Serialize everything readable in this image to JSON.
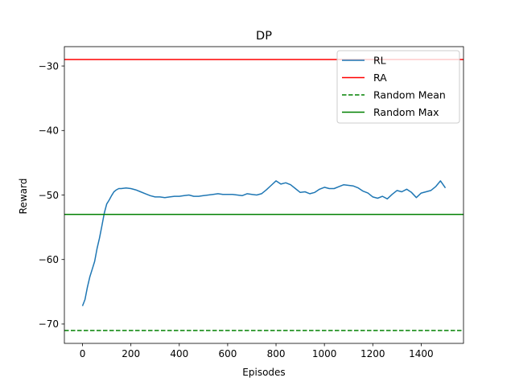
{
  "chart_data": {
    "type": "line",
    "title": "DP",
    "xlabel": "Episodes",
    "ylabel": "Reward",
    "xlim": [
      -75,
      1575
    ],
    "ylim": [
      -73,
      -27
    ],
    "xticks": [
      0,
      200,
      400,
      600,
      800,
      1000,
      1200,
      1400
    ],
    "xtick_labels": [
      "0",
      "200",
      "400",
      "600",
      "800",
      "1000",
      "1200",
      "1400"
    ],
    "yticks": [
      -70,
      -60,
      -50,
      -40,
      -30
    ],
    "ytick_labels": [
      "−70",
      "−60",
      "−50",
      "−40",
      "−30"
    ],
    "grid": false,
    "legend_position": "top-right",
    "series": [
      {
        "name": "RL",
        "color": "#1f77b4",
        "style": "solid",
        "x": [
          0,
          10,
          20,
          30,
          40,
          50,
          60,
          70,
          80,
          90,
          100,
          110,
          120,
          130,
          140,
          150,
          160,
          180,
          200,
          220,
          240,
          260,
          280,
          300,
          320,
          340,
          360,
          380,
          400,
          420,
          440,
          460,
          480,
          500,
          520,
          540,
          560,
          580,
          600,
          620,
          640,
          660,
          680,
          700,
          720,
          740,
          760,
          780,
          800,
          820,
          840,
          860,
          880,
          900,
          920,
          940,
          960,
          980,
          1000,
          1020,
          1040,
          1060,
          1080,
          1100,
          1120,
          1140,
          1160,
          1180,
          1200,
          1220,
          1240,
          1260,
          1280,
          1300,
          1320,
          1340,
          1360,
          1380,
          1400,
          1420,
          1440,
          1460,
          1480,
          1500
        ],
        "values": [
          -67.2,
          -66.2,
          -64.3,
          -62.7,
          -61.5,
          -60.3,
          -58.3,
          -56.7,
          -54.8,
          -52.8,
          -51.4,
          -50.8,
          -50.1,
          -49.5,
          -49.2,
          -49.0,
          -49.0,
          -48.9,
          -49.0,
          -49.2,
          -49.5,
          -49.8,
          -50.1,
          -50.3,
          -50.3,
          -50.4,
          -50.3,
          -50.2,
          -50.2,
          -50.1,
          -50.0,
          -50.2,
          -50.2,
          -50.1,
          -50.0,
          -49.9,
          -49.8,
          -49.9,
          -49.9,
          -49.9,
          -50.0,
          -50.1,
          -49.8,
          -49.9,
          -50.0,
          -49.8,
          -49.2,
          -48.5,
          -47.8,
          -48.3,
          -48.1,
          -48.4,
          -49.0,
          -49.6,
          -49.5,
          -49.8,
          -49.6,
          -49.1,
          -48.8,
          -49.0,
          -49.0,
          -48.7,
          -48.4,
          -48.5,
          -48.6,
          -48.9,
          -49.4,
          -49.7,
          -50.3,
          -50.5,
          -50.2,
          -50.6,
          -49.9,
          -49.3,
          -49.5,
          -49.1,
          -49.6,
          -50.4,
          -49.7,
          -49.5,
          -49.3,
          -48.7,
          -47.8,
          -48.9
        ]
      },
      {
        "name": "RA",
        "color": "#ff0000",
        "style": "solid",
        "y": -29
      },
      {
        "name": "Random Mean",
        "color": "#008000",
        "style": "dashed",
        "y": -71
      },
      {
        "name": "Random Max",
        "color": "#008000",
        "style": "solid",
        "y": -53
      }
    ]
  }
}
